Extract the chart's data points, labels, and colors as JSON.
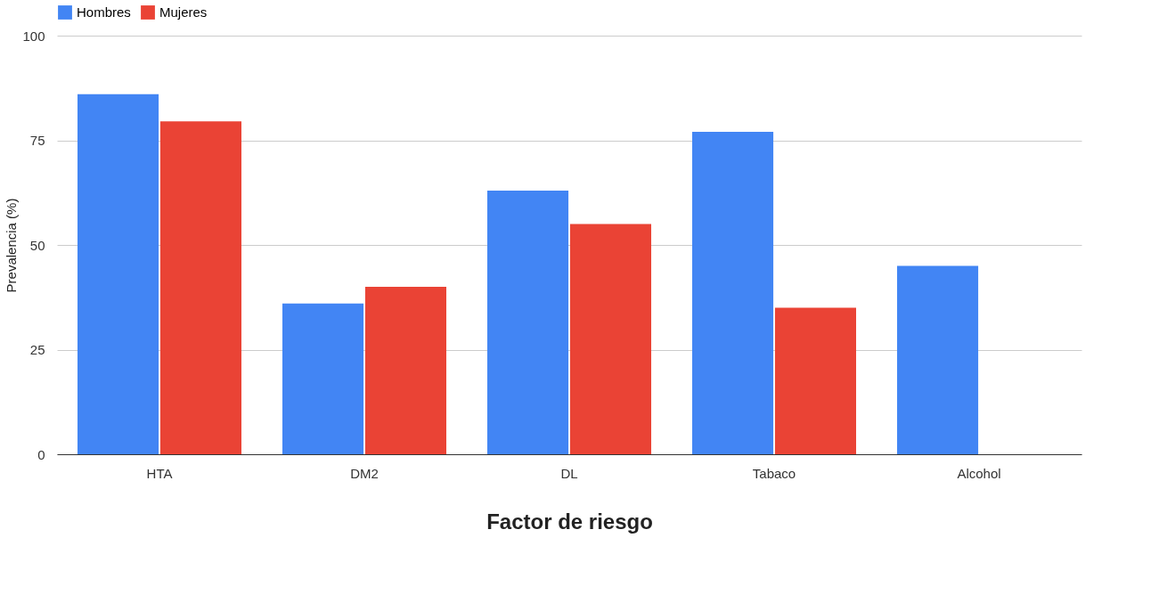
{
  "chart_data": {
    "type": "bar",
    "xlabel": "Factor de riesgo",
    "ylabel": "Prevalencia (%)",
    "categories": [
      "HTA",
      "DM2",
      "DL",
      "Tabaco",
      "Alcohol"
    ],
    "series": [
      {
        "name": "Hombres",
        "color": "#4285f4",
        "values": [
          86,
          36,
          63,
          77,
          45
        ]
      },
      {
        "name": "Mujeres",
        "color": "#ea4335",
        "values": [
          79.5,
          40,
          55,
          35,
          null
        ]
      }
    ],
    "ylim": [
      0,
      100
    ],
    "yticks": [
      0,
      25,
      50,
      75,
      100
    ],
    "grid": "y",
    "legend": "top"
  }
}
